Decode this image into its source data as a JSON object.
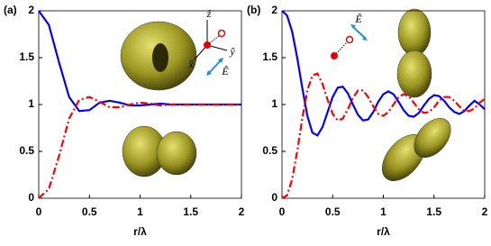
{
  "chart_data": [
    {
      "type": "line",
      "panel_label": "(a)",
      "xlabel": "r/λ",
      "x": [
        0,
        0.1,
        0.2,
        0.3,
        0.4,
        0.5,
        0.6,
        0.7,
        0.8,
        0.9,
        1.0,
        1.1,
        1.2,
        1.3,
        1.4,
        1.5,
        1.6,
        1.7,
        1.8,
        1.9,
        2.0
      ],
      "series": [
        {
          "color": "#0000ff",
          "style": "solid",
          "values": [
            2,
            1.85,
            1.45,
            1.08,
            0.93,
            0.94,
            1.02,
            1.04,
            1.02,
            0.99,
            0.99,
            1.0,
            1.01,
            1.0,
            1.0,
            1.0,
            1.0,
            1.0,
            1.0,
            1.0,
            1.0
          ]
        },
        {
          "color": "#ff0000",
          "style": "dash-dot",
          "values": [
            0,
            0.1,
            0.45,
            0.85,
            1.05,
            1.08,
            1.03,
            0.97,
            0.97,
            1.0,
            1.02,
            1.01,
            0.99,
            1.0,
            1.0,
            1.0,
            1.0,
            1.0,
            1.0,
            1.0,
            1.0
          ]
        }
      ],
      "annotations": [
        "ẑ",
        "ŷ",
        "x̂",
        "Ê"
      ],
      "xlim": [
        0,
        2
      ],
      "xticks": [
        0,
        0.5,
        1,
        1.5,
        2
      ],
      "ylim": [
        0,
        2
      ],
      "yticks": [
        0,
        0.5,
        1,
        1.5,
        2
      ]
    },
    {
      "type": "line",
      "panel_label": "(b)",
      "xlabel": "r/λ",
      "x": [
        0,
        0.05,
        0.1,
        0.15,
        0.2,
        0.25,
        0.3,
        0.35,
        0.4,
        0.45,
        0.5,
        0.55,
        0.6,
        0.65,
        0.7,
        0.75,
        0.8,
        0.85,
        0.9,
        0.95,
        1.0,
        1.05,
        1.1,
        1.15,
        1.2,
        1.25,
        1.3,
        1.35,
        1.4,
        1.45,
        1.5,
        1.55,
        1.6,
        1.65,
        1.7,
        1.75,
        1.8,
        1.85,
        1.9,
        1.95,
        2.0
      ],
      "series": [
        {
          "color": "#0000ff",
          "style": "solid",
          "values": [
            2,
            1.95,
            1.78,
            1.5,
            1.18,
            0.88,
            0.7,
            0.67,
            0.76,
            0.92,
            1.08,
            1.18,
            1.19,
            1.12,
            1.0,
            0.89,
            0.83,
            0.84,
            0.92,
            1.03,
            1.11,
            1.14,
            1.11,
            1.03,
            0.94,
            0.88,
            0.87,
            0.91,
            0.99,
            1.06,
            1.1,
            1.09,
            1.04,
            0.97,
            0.92,
            0.9,
            0.93,
            0.99,
            1.04,
            1.0,
            0.95
          ]
        },
        {
          "color": "#ff0000",
          "style": "dash-dot",
          "values": [
            0,
            0.03,
            0.2,
            0.5,
            0.85,
            1.15,
            1.31,
            1.33,
            1.22,
            1.05,
            0.9,
            0.83,
            0.85,
            0.95,
            1.07,
            1.15,
            1.15,
            1.08,
            0.98,
            0.9,
            0.88,
            0.92,
            1.0,
            1.08,
            1.11,
            1.09,
            1.02,
            0.95,
            0.91,
            0.92,
            0.97,
            1.04,
            1.08,
            1.08,
            1.04,
            0.98,
            0.93,
            0.93,
            0.96,
            1.02,
            1.06
          ]
        }
      ],
      "annotations": [
        "Ê"
      ],
      "xlim": [
        0,
        2
      ],
      "xticks": [
        0,
        0.5,
        1,
        1.5,
        2
      ],
      "ylim": [
        0,
        2
      ],
      "yticks": [
        0,
        0.5,
        1,
        1.5,
        2
      ]
    }
  ]
}
